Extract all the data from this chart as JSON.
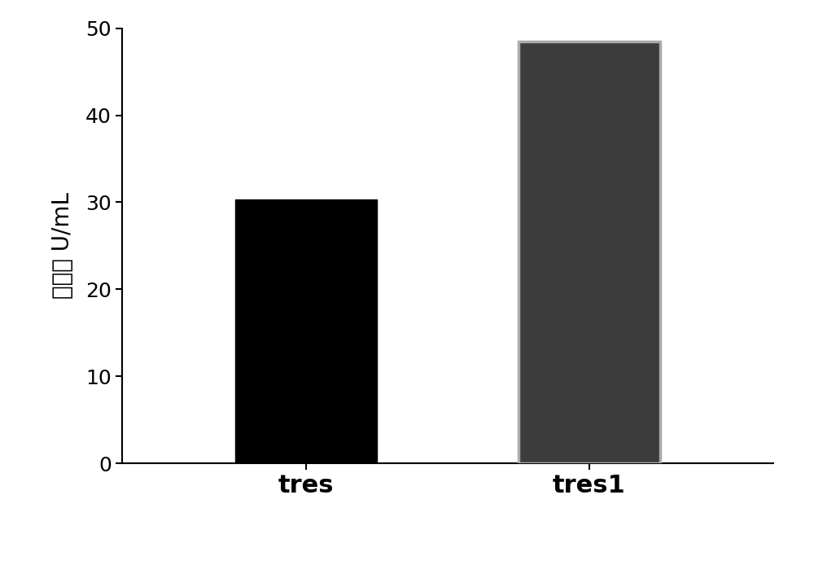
{
  "categories": [
    "tres",
    "tres1"
  ],
  "values": [
    30.3,
    48.5
  ],
  "bar_colors": [
    "#000000",
    "#3c3c3c"
  ],
  "bar_edgecolors": [
    "#000000",
    "#aaaaaa"
  ],
  "bar_edgewidths": [
    1.0,
    2.5
  ],
  "ylabel": "醂活性 U/mL",
  "ylim": [
    0,
    50
  ],
  "yticks": [
    0,
    10,
    20,
    30,
    40,
    50
  ],
  "background_color": "#ffffff",
  "tick_fontsize": 18,
  "label_fontsize": 22,
  "ylabel_fontsize": 20,
  "bar_width": 0.5
}
